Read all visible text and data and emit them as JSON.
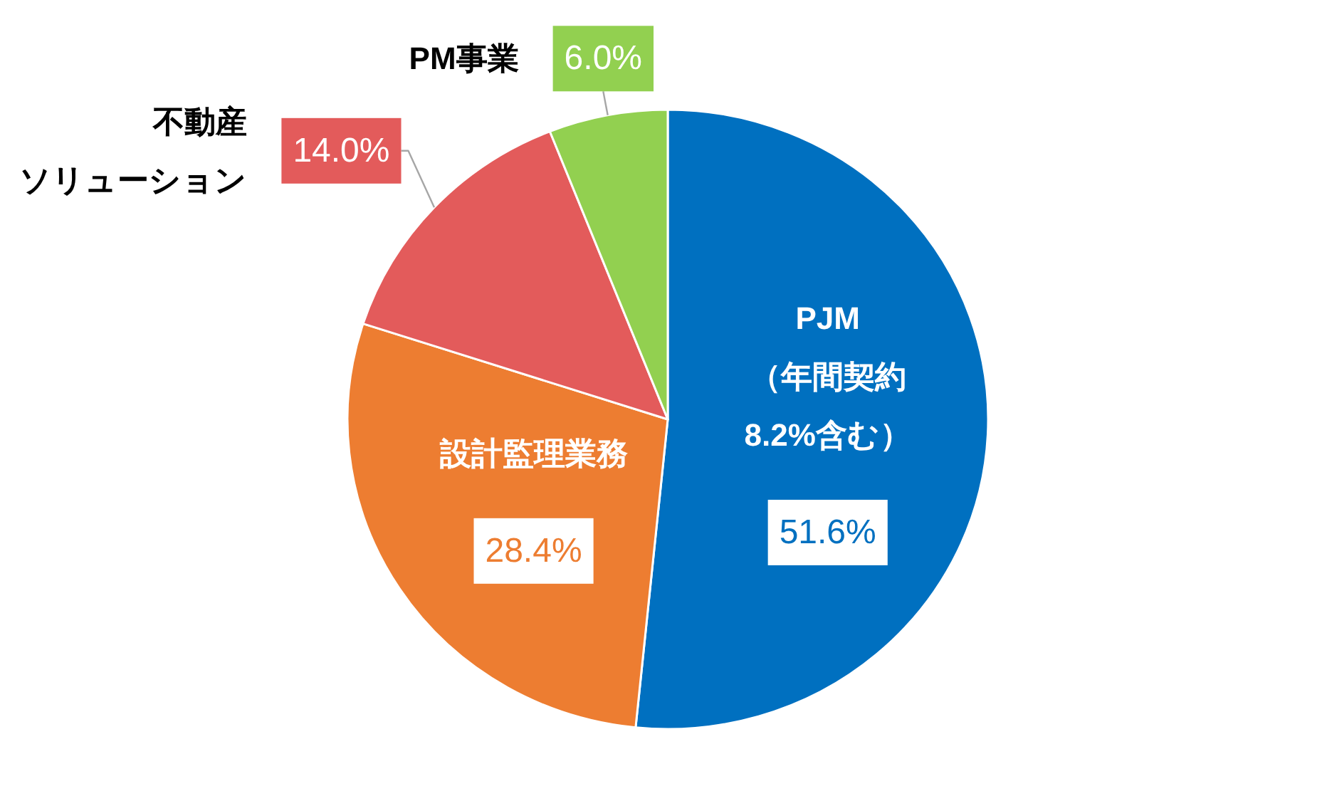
{
  "chart_data": {
    "type": "pie",
    "categories": [
      "PJM（年間契約8.2%含む）",
      "設計監理業務",
      "不動産ソリューション",
      "PM事業"
    ],
    "values": [
      51.6,
      28.4,
      14.0,
      6.0
    ],
    "colors": [
      "#0070c0",
      "#ed7d31",
      "#e35b5b",
      "#92d050"
    ],
    "value_labels": [
      "51.6%",
      "28.4%",
      "14.0%",
      "6.0%"
    ],
    "legend": "top left"
  }
}
